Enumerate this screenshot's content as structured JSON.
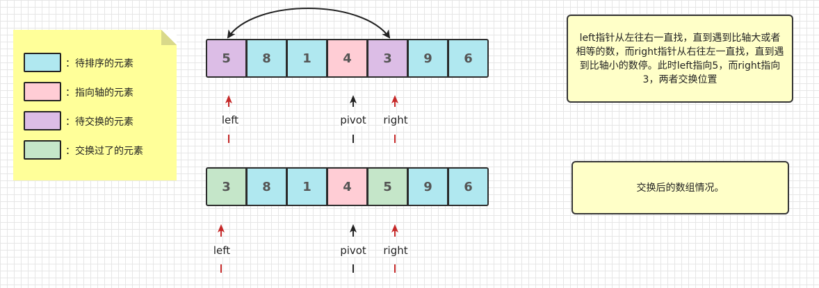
{
  "legend": {
    "items": [
      {
        "label": "：待排序的元素",
        "color": "#b0e8f0"
      },
      {
        "label": "：指向轴的元素",
        "color": "#ffcdd5"
      },
      {
        "label": "：待交换的元素",
        "color": "#dcbde6"
      },
      {
        "label": "：交换过了的元素",
        "color": "#c5e6c9"
      }
    ]
  },
  "colors": {
    "pending": "#b0e8f0",
    "pivot": "#ffcdd5",
    "to_swap": "#dcbde6",
    "swapped": "#c5e6c9",
    "red_arrow": "#c62828",
    "dark_arrow": "#222222"
  },
  "before": {
    "cells": [
      {
        "value": "5",
        "state": "to_swap"
      },
      {
        "value": "8",
        "state": "pending"
      },
      {
        "value": "1",
        "state": "pending"
      },
      {
        "value": "4",
        "state": "pivot"
      },
      {
        "value": "3",
        "state": "to_swap"
      },
      {
        "value": "9",
        "state": "pending"
      },
      {
        "value": "6",
        "state": "pending"
      }
    ],
    "pointers": {
      "left": "left",
      "pivot": "pivot",
      "right": "right"
    },
    "note": "left指针从左往右一直找，直到遇到比轴大或者相等的数，而right指针从右往左一直找，直到遇到比轴小的数停。此时left指向5，而right指向3，两者交换位置"
  },
  "after": {
    "cells": [
      {
        "value": "3",
        "state": "swapped"
      },
      {
        "value": "8",
        "state": "pending"
      },
      {
        "value": "1",
        "state": "pending"
      },
      {
        "value": "4",
        "state": "pivot"
      },
      {
        "value": "5",
        "state": "swapped"
      },
      {
        "value": "9",
        "state": "pending"
      },
      {
        "value": "6",
        "state": "pending"
      }
    ],
    "pointers": {
      "left": "left",
      "pivot": "pivot",
      "right": "right"
    },
    "note": "交换后的数组情况。"
  }
}
